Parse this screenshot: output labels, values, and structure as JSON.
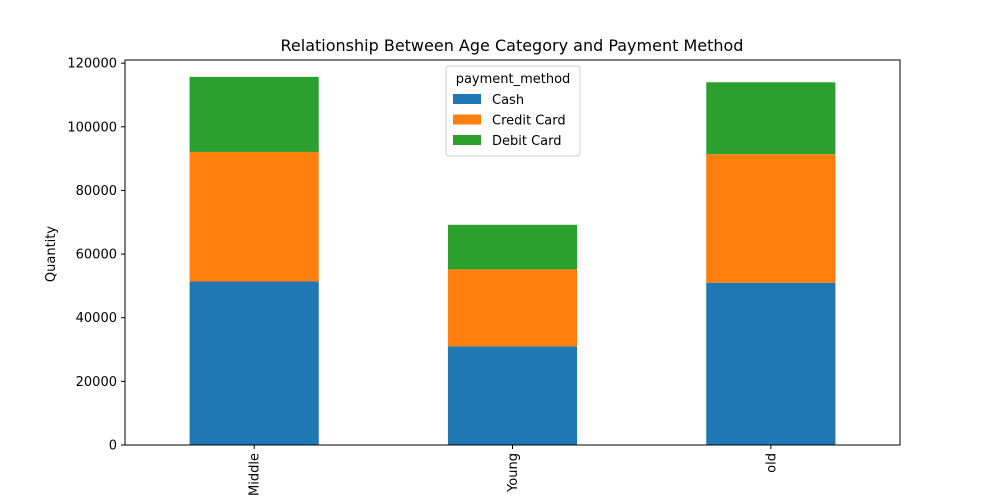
{
  "chart_data": {
    "type": "bar",
    "stacked": true,
    "title": "Relationship Between Age Category and Payment Method",
    "xlabel": "",
    "ylabel": "Quantity",
    "categories": [
      "Middle",
      "Young",
      "old"
    ],
    "series": [
      {
        "name": "Cash",
        "color": "#1f77b4",
        "values": [
          51400,
          31000,
          51000
        ]
      },
      {
        "name": "Credit Card",
        "color": "#ff7f0e",
        "values": [
          40700,
          24200,
          40400
        ]
      },
      {
        "name": "Debit Card",
        "color": "#2ca02c",
        "values": [
          23600,
          14000,
          22600
        ]
      }
    ],
    "ylim": [
      0,
      121000
    ],
    "yticks": [
      0,
      20000,
      40000,
      60000,
      80000,
      100000,
      120000
    ],
    "ytick_labels": [
      "0",
      "20000",
      "40000",
      "60000",
      "80000",
      "100000",
      "120000"
    ],
    "legend": {
      "title": "payment_method",
      "placement": "top-center"
    },
    "grid": false
  }
}
